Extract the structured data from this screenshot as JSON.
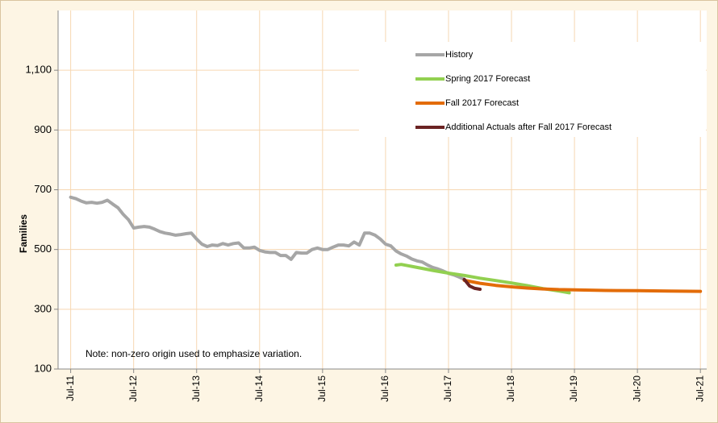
{
  "chart_data": {
    "type": "line",
    "ylabel": "Families",
    "annotation": "Note: non-zero origin used to emphasize variation.",
    "xlim": [
      2011.3,
      2021.6
    ],
    "xticks": [
      {
        "value": 2011.5,
        "label": "Jul-11"
      },
      {
        "value": 2012.5,
        "label": "Jul-12"
      },
      {
        "value": 2013.5,
        "label": "Jul-13"
      },
      {
        "value": 2014.5,
        "label": "Jul-14"
      },
      {
        "value": 2015.5,
        "label": "Jul-15"
      },
      {
        "value": 2016.5,
        "label": "Jul-16"
      },
      {
        "value": 2017.5,
        "label": "Jul-17"
      },
      {
        "value": 2018.5,
        "label": "Jul-18"
      },
      {
        "value": 2019.5,
        "label": "Jul-19"
      },
      {
        "value": 2020.5,
        "label": "Jul-20"
      },
      {
        "value": 2021.5,
        "label": "Jul-21"
      }
    ],
    "ylim": [
      100,
      1300
    ],
    "yticks": [
      100,
      300,
      500,
      700,
      900,
      {
        "value": 1100,
        "label": "1,100"
      }
    ],
    "grid": true,
    "legend": "upper right",
    "series": [
      {
        "name": "History",
        "color": "#a6a6a6",
        "x": [
          2011.5,
          2011.583,
          2011.667,
          2011.75,
          2011.833,
          2011.917,
          2012,
          2012.083,
          2012.167,
          2012.25,
          2012.333,
          2012.417,
          2012.5,
          2012.583,
          2012.667,
          2012.75,
          2012.833,
          2012.917,
          2013,
          2013.083,
          2013.167,
          2013.25,
          2013.333,
          2013.417,
          2013.5,
          2013.583,
          2013.667,
          2013.75,
          2013.833,
          2013.917,
          2014,
          2014.083,
          2014.167,
          2014.25,
          2014.333,
          2014.417,
          2014.5,
          2014.583,
          2014.667,
          2014.75,
          2014.833,
          2014.917,
          2015,
          2015.083,
          2015.167,
          2015.25,
          2015.333,
          2015.417,
          2015.5,
          2015.583,
          2015.667,
          2015.75,
          2015.833,
          2015.917,
          2016,
          2016.083,
          2016.167,
          2016.25,
          2016.333,
          2016.417,
          2016.5,
          2016.583,
          2016.667,
          2016.75,
          2016.833,
          2016.917,
          2017,
          2017.083,
          2017.167,
          2017.25,
          2017.333,
          2017.417,
          2017.5,
          2017.583,
          2017.667,
          2017.75
        ],
        "values": [
          675,
          670,
          662,
          656,
          658,
          655,
          658,
          665,
          652,
          640,
          618,
          600,
          572,
          575,
          577,
          575,
          568,
          560,
          555,
          552,
          548,
          550,
          553,
          555,
          535,
          518,
          510,
          515,
          513,
          520,
          515,
          520,
          522,
          505,
          505,
          508,
          497,
          492,
          490,
          490,
          480,
          480,
          467,
          490,
          488,
          488,
          500,
          505,
          500,
          500,
          508,
          515,
          515,
          512,
          525,
          515,
          555,
          555,
          548,
          535,
          518,
          512,
          495,
          485,
          478,
          468,
          462,
          458,
          448,
          440,
          435,
          428,
          420,
          415,
          408,
          400
        ]
      },
      {
        "name": "Spring 2017 Forecast",
        "color": "#92d050",
        "x": [
          2016.667,
          2016.75,
          2017,
          2017.25,
          2017.5,
          2017.75,
          2018,
          2018.25,
          2018.5,
          2018.75,
          2019,
          2019.25,
          2019.417
        ],
        "values": [
          448,
          450,
          440,
          430,
          421,
          413,
          404,
          396,
          388,
          379,
          369,
          361,
          355
        ]
      },
      {
        "name": "Fall 2017 Forecast",
        "color": "#e36c09",
        "x": [
          2017.75,
          2018,
          2018.25,
          2018.5,
          2018.75,
          2019,
          2019.25,
          2019.5,
          2019.75,
          2020,
          2020.5,
          2021,
          2021.5
        ],
        "values": [
          397,
          387,
          380,
          375,
          371,
          368,
          366,
          365,
          364,
          363,
          362,
          361,
          360
        ]
      },
      {
        "name": "Additional Actuals after Fall 2017 Forecast",
        "color": "#6b2323",
        "x": [
          2017.75,
          2017.833,
          2017.917,
          2018
        ],
        "values": [
          400,
          378,
          370,
          367
        ]
      }
    ]
  }
}
